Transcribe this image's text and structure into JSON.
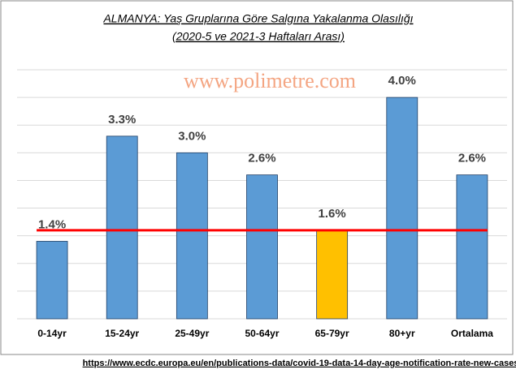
{
  "chart_data": {
    "type": "bar",
    "title": [
      "ALMANYA: Yaş Gruplarına Göre Salgına Yakalanma Olasılığı",
      "(2020-5 ve 2021-3 Haftaları Arası)"
    ],
    "watermark": "www.polimetre.com",
    "categories": [
      "0-14yr",
      "15-24yr",
      "25-49yr",
      "50-64yr",
      "65-79yr",
      "80+yr",
      "Ortalama"
    ],
    "values": [
      1.4,
      3.3,
      3.0,
      2.6,
      1.6,
      4.0,
      2.6
    ],
    "value_labels": [
      "1.4%",
      "3.3%",
      "3.0%",
      "2.6%",
      "1.6%",
      "4.0%",
      "2.6%"
    ],
    "colors": [
      "#5b9bd5",
      "#5b9bd5",
      "#5b9bd5",
      "#5b9bd5",
      "#ffc000",
      "#5b9bd5",
      "#5b9bd5"
    ],
    "reference_line": {
      "value": 1.6,
      "color": "#ff0000"
    },
    "ylim": [
      0,
      4.5
    ],
    "yticks": [
      0,
      0.5,
      1,
      1.5,
      2,
      2.5,
      3,
      3.5,
      4,
      4.5
    ],
    "grid": true,
    "source": "https://www.ecdc.europa.eu/en/publications-data/covid-19-data-14-day-age-notification-rate-new-cases"
  }
}
